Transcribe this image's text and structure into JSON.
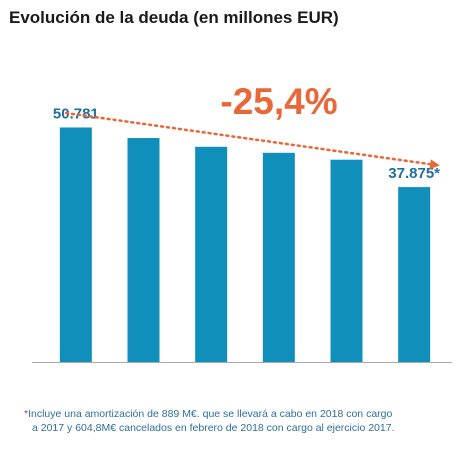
{
  "chart_data": {
    "type": "bar",
    "title": "Evolución de la deuda (en millones EUR)",
    "categories": [
      "",
      "",
      "",
      "",
      "",
      ""
    ],
    "values": [
      50781,
      48500,
      46600,
      45300,
      43800,
      37875
    ],
    "value_labels": [
      "50.781",
      "",
      "",
      "",
      "",
      "37.875*"
    ],
    "ylim": [
      0,
      55000
    ],
    "grid": false,
    "annotation": "-25,4%",
    "colors": {
      "bar": "#0f8fba",
      "value_label": "#1f6e9c",
      "trend": "#e8683a",
      "annotation": "#e8683a",
      "axis": "#aaaaaa"
    }
  },
  "footnote": {
    "line1": "Incluye una amortización de 889 M€. que se llevará a cabo en 2018 con cargo",
    "line2": "a 2017 y 604,8M€ cancelados en febrero de 2018 con cargo al ejercicio 2017.",
    "marker": "*"
  }
}
